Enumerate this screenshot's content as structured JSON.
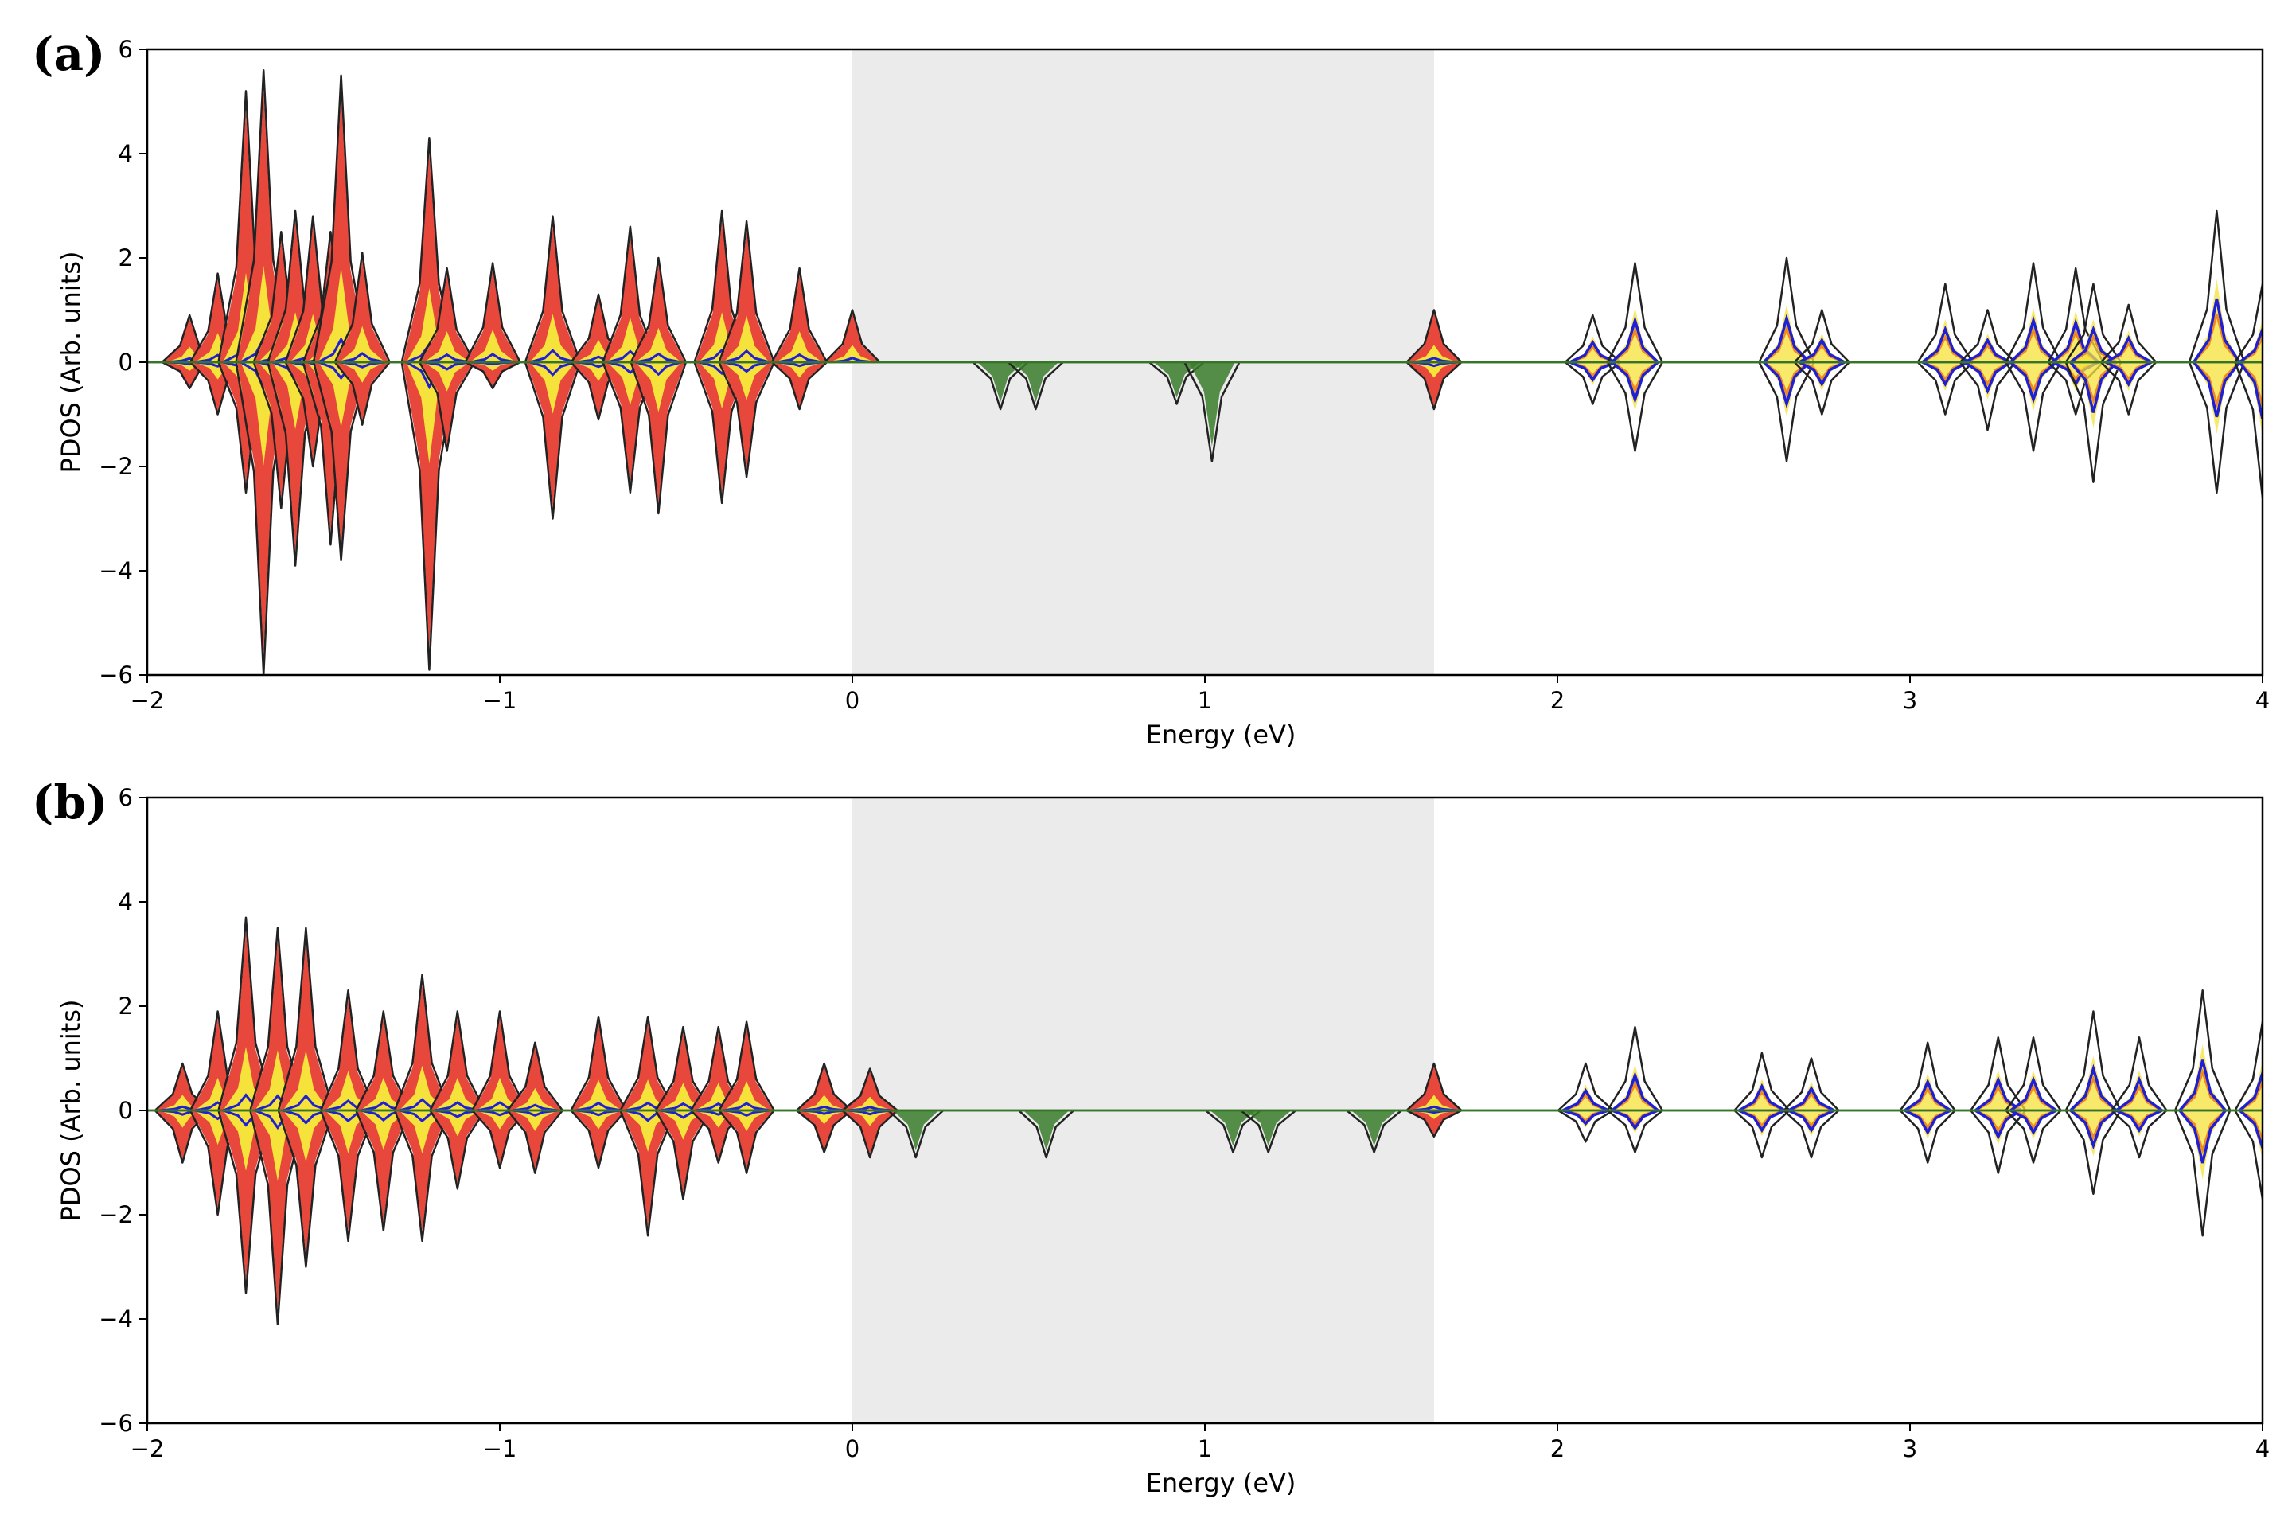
{
  "chart_data": [
    {
      "type": "area",
      "panel_label": "(a)",
      "title": "",
      "xlabel": "Energy (eV)",
      "ylabel": "PDOS (Arb. units)",
      "xlim": [
        -2,
        4
      ],
      "ylim": [
        -6,
        6
      ],
      "xticks": [
        -2,
        -1,
        0,
        1,
        2,
        3,
        4
      ],
      "yticks": [
        -6,
        -4,
        -2,
        0,
        2,
        4,
        6
      ],
      "xtick_labels": [
        "−2",
        "−1",
        "0",
        "1",
        "2",
        "3",
        "4"
      ],
      "ytick_labels": [
        "−6",
        "−4",
        "−2",
        "0",
        "2",
        "4",
        "6"
      ],
      "band_gap": {
        "x_start": 0.0,
        "x_end": 1.65,
        "color": "#ebebeb"
      },
      "colors": {
        "total": "#222222",
        "red": "#e8473b",
        "yellow": "#f5e23a",
        "blue": "#1f1fd6",
        "orange": "#f08a1e",
        "green": "#3a7d2a"
      },
      "peaks": [
        {
          "e": -1.88,
          "up": 0.9,
          "dn": 0.5
        },
        {
          "e": -1.8,
          "up": 1.7,
          "dn": 1.0
        },
        {
          "e": -1.72,
          "up": 5.2,
          "dn": 2.5
        },
        {
          "e": -1.67,
          "up": 5.6,
          "dn": 6.0
        },
        {
          "e": -1.62,
          "up": 2.5,
          "dn": 2.8
        },
        {
          "e": -1.58,
          "up": 2.9,
          "dn": 3.9
        },
        {
          "e": -1.53,
          "up": 2.8,
          "dn": 2.0
        },
        {
          "e": -1.48,
          "up": 2.5,
          "dn": 3.5
        },
        {
          "e": -1.45,
          "up": 5.5,
          "dn": 3.8
        },
        {
          "e": -1.39,
          "up": 2.1,
          "dn": 1.2
        },
        {
          "e": -1.2,
          "up": 4.3,
          "dn": 5.9
        },
        {
          "e": -1.15,
          "up": 1.8,
          "dn": 1.7
        },
        {
          "e": -1.02,
          "up": 1.9,
          "dn": 0.5
        },
        {
          "e": -0.85,
          "up": 2.8,
          "dn": 3.0
        },
        {
          "e": -0.72,
          "up": 1.3,
          "dn": 1.1
        },
        {
          "e": -0.63,
          "up": 2.6,
          "dn": 2.5
        },
        {
          "e": -0.55,
          "up": 2.0,
          "dn": 2.9
        },
        {
          "e": -0.37,
          "up": 2.9,
          "dn": 2.7
        },
        {
          "e": -0.3,
          "up": 2.7,
          "dn": 2.2
        },
        {
          "e": -0.15,
          "up": 1.8,
          "dn": 0.9
        },
        {
          "e": 0.0,
          "up": 1.0,
          "dn": 0.0
        },
        {
          "e": 0.42,
          "up": 0.0,
          "dn": 0.9
        },
        {
          "e": 0.52,
          "up": 0.0,
          "dn": 0.9
        },
        {
          "e": 0.92,
          "up": 0.0,
          "dn": 0.8
        },
        {
          "e": 1.02,
          "up": 0.0,
          "dn": 1.9
        },
        {
          "e": 1.65,
          "up": 1.0,
          "dn": 0.9
        },
        {
          "e": 2.1,
          "up": 0.9,
          "dn": 0.8
        },
        {
          "e": 2.22,
          "up": 1.9,
          "dn": 1.7
        },
        {
          "e": 2.65,
          "up": 2.0,
          "dn": 1.9
        },
        {
          "e": 2.75,
          "up": 1.0,
          "dn": 1.0
        },
        {
          "e": 3.1,
          "up": 1.5,
          "dn": 1.0
        },
        {
          "e": 3.22,
          "up": 1.0,
          "dn": 1.3
        },
        {
          "e": 3.35,
          "up": 1.9,
          "dn": 1.7
        },
        {
          "e": 3.47,
          "up": 1.8,
          "dn": 1.0
        },
        {
          "e": 3.52,
          "up": 1.5,
          "dn": 2.3
        },
        {
          "e": 3.62,
          "up": 1.1,
          "dn": 1.0
        },
        {
          "e": 3.87,
          "up": 2.9,
          "dn": 2.5
        },
        {
          "e": 4.0,
          "up": 1.5,
          "dn": 2.6
        }
      ]
    },
    {
      "type": "area",
      "panel_label": "(b)",
      "title": "",
      "xlabel": "Energy (eV)",
      "ylabel": "PDOS (Arb. units)",
      "xlim": [
        -2,
        4
      ],
      "ylim": [
        -6,
        6
      ],
      "xticks": [
        -2,
        -1,
        0,
        1,
        2,
        3,
        4
      ],
      "yticks": [
        -6,
        -4,
        -2,
        0,
        2,
        4,
        6
      ],
      "xtick_labels": [
        "−2",
        "−1",
        "0",
        "1",
        "2",
        "3",
        "4"
      ],
      "ytick_labels": [
        "−6",
        "−4",
        "−2",
        "0",
        "2",
        "4",
        "6"
      ],
      "band_gap": {
        "x_start": 0.0,
        "x_end": 1.65,
        "color": "#ebebeb"
      },
      "colors": {
        "total": "#222222",
        "red": "#e8473b",
        "yellow": "#f5e23a",
        "blue": "#1f1fd6",
        "orange": "#f08a1e",
        "green": "#3a7d2a"
      },
      "peaks": [
        {
          "e": -1.9,
          "up": 0.9,
          "dn": 1.0
        },
        {
          "e": -1.8,
          "up": 1.9,
          "dn": 2.0
        },
        {
          "e": -1.72,
          "up": 3.7,
          "dn": 3.5
        },
        {
          "e": -1.63,
          "up": 3.5,
          "dn": 4.1
        },
        {
          "e": -1.55,
          "up": 3.5,
          "dn": 3.0
        },
        {
          "e": -1.43,
          "up": 2.3,
          "dn": 2.5
        },
        {
          "e": -1.33,
          "up": 1.9,
          "dn": 2.3
        },
        {
          "e": -1.22,
          "up": 2.6,
          "dn": 2.5
        },
        {
          "e": -1.12,
          "up": 1.9,
          "dn": 1.5
        },
        {
          "e": -1.0,
          "up": 1.9,
          "dn": 1.1
        },
        {
          "e": -0.9,
          "up": 1.3,
          "dn": 1.2
        },
        {
          "e": -0.72,
          "up": 1.8,
          "dn": 1.1
        },
        {
          "e": -0.58,
          "up": 1.8,
          "dn": 2.4
        },
        {
          "e": -0.48,
          "up": 1.6,
          "dn": 1.7
        },
        {
          "e": -0.38,
          "up": 1.6,
          "dn": 1.0
        },
        {
          "e": -0.3,
          "up": 1.7,
          "dn": 1.2
        },
        {
          "e": -0.08,
          "up": 0.9,
          "dn": 0.8
        },
        {
          "e": 0.05,
          "up": 0.8,
          "dn": 0.9
        },
        {
          "e": 0.18,
          "up": 0.0,
          "dn": 0.9
        },
        {
          "e": 0.55,
          "up": 0.0,
          "dn": 0.9
        },
        {
          "e": 1.08,
          "up": 0.0,
          "dn": 0.8
        },
        {
          "e": 1.18,
          "up": 0.0,
          "dn": 0.8
        },
        {
          "e": 1.48,
          "up": 0.0,
          "dn": 0.8
        },
        {
          "e": 1.65,
          "up": 0.9,
          "dn": 0.5
        },
        {
          "e": 2.08,
          "up": 0.9,
          "dn": 0.6
        },
        {
          "e": 2.22,
          "up": 1.6,
          "dn": 0.8
        },
        {
          "e": 2.58,
          "up": 1.1,
          "dn": 0.9
        },
        {
          "e": 2.72,
          "up": 1.0,
          "dn": 0.9
        },
        {
          "e": 3.05,
          "up": 1.3,
          "dn": 1.0
        },
        {
          "e": 3.25,
          "up": 1.4,
          "dn": 1.2
        },
        {
          "e": 3.35,
          "up": 1.4,
          "dn": 1.0
        },
        {
          "e": 3.52,
          "up": 1.9,
          "dn": 1.6
        },
        {
          "e": 3.65,
          "up": 1.4,
          "dn": 0.9
        },
        {
          "e": 3.83,
          "up": 2.3,
          "dn": 2.4
        },
        {
          "e": 4.0,
          "up": 1.7,
          "dn": 1.7
        }
      ]
    }
  ]
}
